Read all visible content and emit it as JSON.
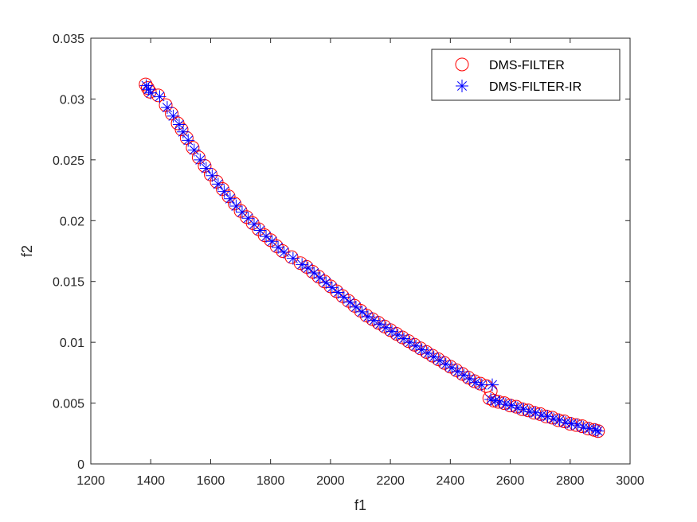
{
  "chart_data": {
    "type": "scatter",
    "title": "",
    "xlabel": "f1",
    "ylabel": "f2",
    "xlim": [
      1200,
      3000
    ],
    "ylim": [
      0,
      0.035
    ],
    "xticks": [
      "1200",
      "1400",
      "1600",
      "1800",
      "2000",
      "2200",
      "2400",
      "2600",
      "2800",
      "3000"
    ],
    "yticks": [
      "0",
      "0.005",
      "0.01",
      "0.015",
      "0.02",
      "0.025",
      "0.03",
      "0.035"
    ],
    "grid": false,
    "legend_position": "top-right",
    "series": [
      {
        "name": "DMS-FILTER",
        "marker": "circle",
        "color": "#ff0000",
        "points": [
          [
            1383,
            0.0312
          ],
          [
            1390,
            0.0309
          ],
          [
            1397,
            0.0306
          ],
          [
            1425,
            0.0303
          ],
          [
            1450,
            0.0295
          ],
          [
            1470,
            0.0288
          ],
          [
            1490,
            0.028
          ],
          [
            1503,
            0.0275
          ],
          [
            1520,
            0.0268
          ],
          [
            1540,
            0.026
          ],
          [
            1560,
            0.0252
          ],
          [
            1580,
            0.0245
          ],
          [
            1600,
            0.0238
          ],
          [
            1620,
            0.0232
          ],
          [
            1640,
            0.0226
          ],
          [
            1660,
            0.022
          ],
          [
            1680,
            0.0214
          ],
          [
            1700,
            0.0208
          ],
          [
            1720,
            0.0203
          ],
          [
            1740,
            0.0198
          ],
          [
            1760,
            0.0193
          ],
          [
            1780,
            0.0188
          ],
          [
            1800,
            0.0184
          ],
          [
            1820,
            0.0179
          ],
          [
            1840,
            0.0175
          ],
          [
            1870,
            0.017
          ],
          [
            1900,
            0.0165
          ],
          [
            1920,
            0.0162
          ],
          [
            1940,
            0.0158
          ],
          [
            1960,
            0.0154
          ],
          [
            1980,
            0.015
          ],
          [
            2000,
            0.0146
          ],
          [
            2020,
            0.0142
          ],
          [
            2040,
            0.0138
          ],
          [
            2060,
            0.0134
          ],
          [
            2080,
            0.013
          ],
          [
            2100,
            0.0126
          ],
          [
            2120,
            0.0122
          ],
          [
            2140,
            0.0119
          ],
          [
            2160,
            0.0116
          ],
          [
            2180,
            0.0113
          ],
          [
            2200,
            0.011
          ],
          [
            2220,
            0.0107
          ],
          [
            2240,
            0.0104
          ],
          [
            2260,
            0.0101
          ],
          [
            2280,
            0.0098
          ],
          [
            2300,
            0.0095
          ],
          [
            2320,
            0.0092
          ],
          [
            2340,
            0.0089
          ],
          [
            2360,
            0.0086
          ],
          [
            2380,
            0.0083
          ],
          [
            2400,
            0.008
          ],
          [
            2420,
            0.0077
          ],
          [
            2440,
            0.0074
          ],
          [
            2460,
            0.0071
          ],
          [
            2480,
            0.0068
          ],
          [
            2500,
            0.0066
          ],
          [
            2520,
            0.0064
          ],
          [
            2535,
            0.006
          ],
          [
            2530,
            0.0054
          ],
          [
            2545,
            0.0052
          ],
          [
            2560,
            0.0051
          ],
          [
            2580,
            0.005
          ],
          [
            2600,
            0.0048
          ],
          [
            2620,
            0.0047
          ],
          [
            2640,
            0.0045
          ],
          [
            2660,
            0.0044
          ],
          [
            2680,
            0.0042
          ],
          [
            2700,
            0.0041
          ],
          [
            2720,
            0.0039
          ],
          [
            2740,
            0.0038
          ],
          [
            2760,
            0.0036
          ],
          [
            2780,
            0.0035
          ],
          [
            2800,
            0.0033
          ],
          [
            2820,
            0.0032
          ],
          [
            2840,
            0.0031
          ],
          [
            2860,
            0.0029
          ],
          [
            2880,
            0.0028
          ],
          [
            2893,
            0.0027
          ]
        ]
      },
      {
        "name": "DMS-FILTER-IR",
        "marker": "asterisk",
        "color": "#0000ff",
        "points": [
          [
            1385,
            0.0311
          ],
          [
            1393,
            0.0308
          ],
          [
            1400,
            0.0305
          ],
          [
            1430,
            0.0302
          ],
          [
            1455,
            0.0293
          ],
          [
            1475,
            0.0286
          ],
          [
            1495,
            0.0279
          ],
          [
            1508,
            0.0273
          ],
          [
            1525,
            0.0266
          ],
          [
            1545,
            0.0258
          ],
          [
            1565,
            0.025
          ],
          [
            1585,
            0.0243
          ],
          [
            1605,
            0.0237
          ],
          [
            1625,
            0.023
          ],
          [
            1645,
            0.0224
          ],
          [
            1665,
            0.0218
          ],
          [
            1685,
            0.0212
          ],
          [
            1705,
            0.0207
          ],
          [
            1725,
            0.0202
          ],
          [
            1745,
            0.0197
          ],
          [
            1765,
            0.0192
          ],
          [
            1785,
            0.0187
          ],
          [
            1805,
            0.0183
          ],
          [
            1825,
            0.0178
          ],
          [
            1845,
            0.0174
          ],
          [
            1875,
            0.0169
          ],
          [
            1905,
            0.0164
          ],
          [
            1925,
            0.0161
          ],
          [
            1945,
            0.0157
          ],
          [
            1965,
            0.0153
          ],
          [
            1985,
            0.0149
          ],
          [
            2005,
            0.0145
          ],
          [
            2025,
            0.0141
          ],
          [
            2045,
            0.0137
          ],
          [
            2065,
            0.0133
          ],
          [
            2085,
            0.0129
          ],
          [
            2105,
            0.0125
          ],
          [
            2125,
            0.0121
          ],
          [
            2145,
            0.0118
          ],
          [
            2165,
            0.0115
          ],
          [
            2185,
            0.0112
          ],
          [
            2205,
            0.0109
          ],
          [
            2225,
            0.0106
          ],
          [
            2245,
            0.0103
          ],
          [
            2265,
            0.01
          ],
          [
            2285,
            0.0097
          ],
          [
            2305,
            0.0094
          ],
          [
            2325,
            0.0091
          ],
          [
            2345,
            0.0088
          ],
          [
            2365,
            0.0085
          ],
          [
            2385,
            0.0082
          ],
          [
            2405,
            0.0079
          ],
          [
            2425,
            0.0076
          ],
          [
            2445,
            0.0073
          ],
          [
            2465,
            0.007
          ],
          [
            2485,
            0.0067
          ],
          [
            2505,
            0.0065
          ],
          [
            2540,
            0.0065
          ],
          [
            2535,
            0.0053
          ],
          [
            2550,
            0.0052
          ],
          [
            2565,
            0.0051
          ],
          [
            2585,
            0.0049
          ],
          [
            2605,
            0.0048
          ],
          [
            2625,
            0.0046
          ],
          [
            2645,
            0.0045
          ],
          [
            2665,
            0.0043
          ],
          [
            2685,
            0.0042
          ],
          [
            2705,
            0.004
          ],
          [
            2725,
            0.0039
          ],
          [
            2745,
            0.0037
          ],
          [
            2765,
            0.0036
          ],
          [
            2785,
            0.0034
          ],
          [
            2805,
            0.0033
          ],
          [
            2825,
            0.0032
          ],
          [
            2845,
            0.003
          ],
          [
            2865,
            0.0029
          ],
          [
            2885,
            0.0028
          ],
          [
            2893,
            0.0027
          ]
        ]
      }
    ]
  }
}
